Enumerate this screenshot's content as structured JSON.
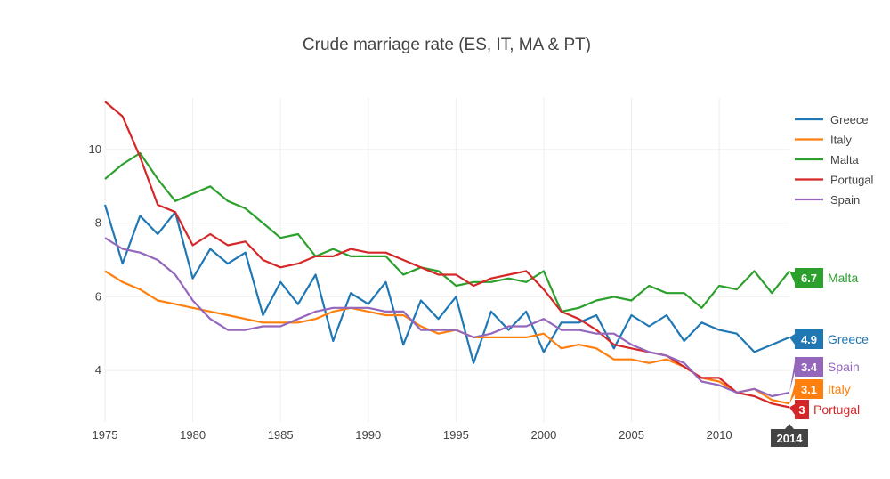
{
  "chart_data": {
    "type": "line",
    "title": "Crude marriage rate (ES, IT, MA & PT)",
    "xlabel": "",
    "ylabel": "",
    "xlim": [
      1975,
      2014
    ],
    "ylim": [
      2.6,
      11.4
    ],
    "x_ticks": [
      1975,
      1980,
      1985,
      1990,
      1995,
      2000,
      2005,
      2010
    ],
    "y_ticks": [
      4,
      6,
      8,
      10
    ],
    "grid": true,
    "legend_position": "top-right",
    "hover_x_label": "2014",
    "x": [
      1975,
      1976,
      1977,
      1978,
      1979,
      1980,
      1981,
      1982,
      1983,
      1984,
      1985,
      1986,
      1987,
      1988,
      1989,
      1990,
      1991,
      1992,
      1993,
      1994,
      1995,
      1996,
      1997,
      1998,
      1999,
      2000,
      2001,
      2002,
      2003,
      2004,
      2005,
      2006,
      2007,
      2008,
      2009,
      2010,
      2011,
      2012,
      2013,
      2014
    ],
    "series": [
      {
        "name": "Greece",
        "color": "#1f77b4",
        "end_value": "4.9",
        "values": [
          8.5,
          6.9,
          8.2,
          7.7,
          8.3,
          6.5,
          7.3,
          6.9,
          7.2,
          5.5,
          6.4,
          5.8,
          6.6,
          4.8,
          6.1,
          5.8,
          6.4,
          4.7,
          5.9,
          5.4,
          6.0,
          4.2,
          5.6,
          5.1,
          5.6,
          4.5,
          5.3,
          5.3,
          5.5,
          4.6,
          5.5,
          5.2,
          5.5,
          4.8,
          5.3,
          5.1,
          5.0,
          4.5,
          4.7,
          4.9
        ]
      },
      {
        "name": "Italy",
        "color": "#ff7f0e",
        "end_value": "3.1",
        "values": [
          6.7,
          6.4,
          6.2,
          5.9,
          5.8,
          5.7,
          5.6,
          5.5,
          5.4,
          5.3,
          5.3,
          5.3,
          5.4,
          5.6,
          5.7,
          5.6,
          5.5,
          5.5,
          5.2,
          5.0,
          5.1,
          4.9,
          4.9,
          4.9,
          4.9,
          5.0,
          4.6,
          4.7,
          4.6,
          4.3,
          4.3,
          4.2,
          4.3,
          4.1,
          3.8,
          3.7,
          3.4,
          3.5,
          3.2,
          3.1
        ]
      },
      {
        "name": "Malta",
        "color": "#2ca02c",
        "end_value": "6.7",
        "values": [
          9.2,
          9.6,
          9.9,
          9.2,
          8.6,
          8.8,
          9.0,
          8.6,
          8.4,
          8.0,
          7.6,
          7.7,
          7.1,
          7.3,
          7.1,
          7.1,
          7.1,
          6.6,
          6.8,
          6.7,
          6.3,
          6.4,
          6.4,
          6.5,
          6.4,
          6.7,
          5.6,
          5.7,
          5.9,
          6.0,
          5.9,
          6.3,
          6.1,
          6.1,
          5.7,
          6.3,
          6.2,
          6.7,
          6.1,
          6.7
        ]
      },
      {
        "name": "Portugal",
        "color": "#d62728",
        "end_value": "3",
        "values": [
          11.3,
          10.9,
          9.8,
          8.5,
          8.3,
          7.4,
          7.7,
          7.4,
          7.5,
          7.0,
          6.8,
          6.9,
          7.1,
          7.1,
          7.3,
          7.2,
          7.2,
          7.0,
          6.8,
          6.6,
          6.6,
          6.3,
          6.5,
          6.6,
          6.7,
          6.2,
          5.6,
          5.4,
          5.1,
          4.7,
          4.6,
          4.5,
          4.4,
          4.1,
          3.8,
          3.8,
          3.4,
          3.3,
          3.1,
          3.0
        ]
      },
      {
        "name": "Spain",
        "color": "#9467bd",
        "end_value": "3.4",
        "values": [
          7.6,
          7.3,
          7.2,
          7.0,
          6.6,
          5.9,
          5.4,
          5.1,
          5.1,
          5.2,
          5.2,
          5.4,
          5.6,
          5.7,
          5.7,
          5.7,
          5.6,
          5.6,
          5.1,
          5.1,
          5.1,
          4.9,
          5.0,
          5.2,
          5.2,
          5.4,
          5.1,
          5.1,
          5.0,
          5.0,
          4.7,
          4.5,
          4.4,
          4.2,
          3.7,
          3.6,
          3.4,
          3.5,
          3.3,
          3.4
        ]
      }
    ]
  }
}
